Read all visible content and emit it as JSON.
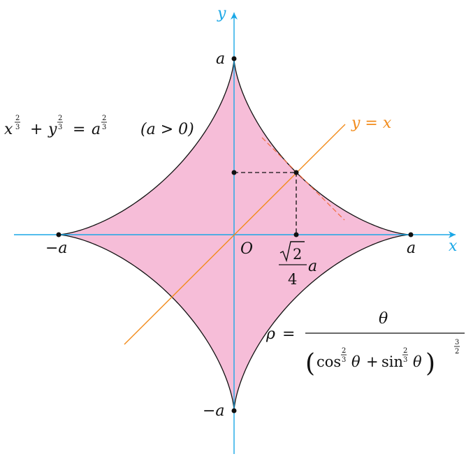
{
  "colors": {
    "axis": "#1aa7e6",
    "diagonal": "#f28c1c",
    "tangent": "#f26a3c",
    "fill": "#f6bdd8",
    "curve": "#111111",
    "point": "#111111"
  },
  "axes": {
    "x_label": "x",
    "y_label": "y",
    "origin_label": "O"
  },
  "points": {
    "x_pos": "a",
    "x_neg": "−a",
    "y_pos": "a",
    "y_neg": "−a",
    "proj_sqrt_num": "2",
    "proj_den": "4",
    "proj_a": "a"
  },
  "line_label": "y = x",
  "cartesian_equation": {
    "x": "x",
    "y": "y",
    "a": "a",
    "exp_num": "2",
    "exp_den": "3",
    "plus": "+",
    "eq": "=",
    "condition": "(a > 0)"
  },
  "polar_equation": {
    "rho": "ρ",
    "eq": "=",
    "numerator": "θ",
    "lparen": "(",
    "rparen": ")",
    "cos": "cos",
    "sin": "sin",
    "theta": "θ",
    "plus": "+",
    "exp_num": "2",
    "exp_den": "3",
    "outer_exp_num": "3",
    "outer_exp_den": "2"
  }
}
